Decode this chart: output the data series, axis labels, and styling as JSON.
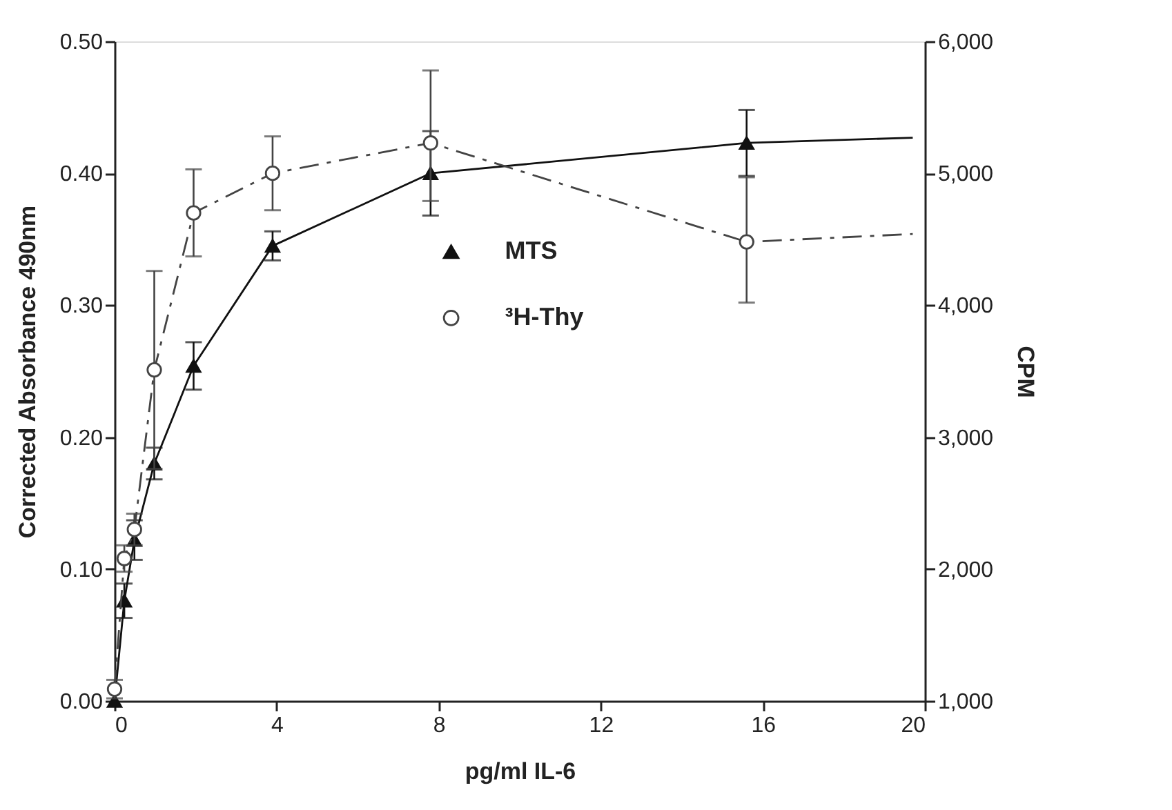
{
  "chart_data": {
    "type": "line",
    "xlabel": "pg/ml IL-6",
    "ylabel": "Corrected Absorbance 490nm",
    "y2label": "CPM",
    "xlim": [
      0,
      20
    ],
    "xticks": [
      0,
      4,
      8,
      12,
      16,
      20
    ],
    "ylim": [
      0,
      0.5
    ],
    "yticks": [
      {
        "value": 0,
        "label": "0.00"
      },
      {
        "value": 0.1,
        "label": "0.10"
      },
      {
        "value": 0.2,
        "label": "0.20"
      },
      {
        "value": 0.3,
        "label": "0.30"
      },
      {
        "value": 0.4,
        "label": "0.40"
      },
      {
        "value": 0.5,
        "label": "0.50"
      }
    ],
    "y2lim": [
      1000,
      6000
    ],
    "y2ticks": [
      {
        "value": 1000,
        "label": "1,000"
      },
      {
        "value": 2000,
        "label": "2,000"
      },
      {
        "value": 3000,
        "label": "3,000"
      },
      {
        "value": 4000,
        "label": "4,000"
      },
      {
        "value": 5000,
        "label": "5,000"
      },
      {
        "value": 6000,
        "label": "6,000"
      }
    ],
    "legend": "right",
    "series": [
      {
        "name": "MTS",
        "color": "#111111",
        "marker": "triangle",
        "line_style": "solid",
        "x": [
          0,
          0.24,
          0.49,
          0.98,
          1.95,
          3.9,
          7.8,
          15.6,
          19.7
        ],
        "values": [
          0,
          0.076,
          0.122,
          0.18,
          0.254,
          0.345,
          0.4,
          0.423,
          0.427
        ],
        "errors": [
          null,
          0.013,
          0.015,
          0.012,
          0.018,
          0.011,
          0.032,
          0.025,
          null
        ]
      },
      {
        "name": "³H-Thy",
        "color": "#444444",
        "marker": "circle",
        "line_style": "dashed",
        "axis": "y2",
        "x": [
          0,
          0.24,
          0.49,
          0.98,
          1.95,
          3.9,
          7.8,
          15.6,
          19.7
        ],
        "values": [
          1090,
          2080,
          2300,
          3510,
          4700,
          5000,
          5230,
          4480,
          4540
        ],
        "errors": [
          70,
          100,
          120,
          750,
          330,
          280,
          [
            4790,
            5780
          ],
          [
            4020,
            4970
          ],
          null
        ]
      }
    ]
  }
}
